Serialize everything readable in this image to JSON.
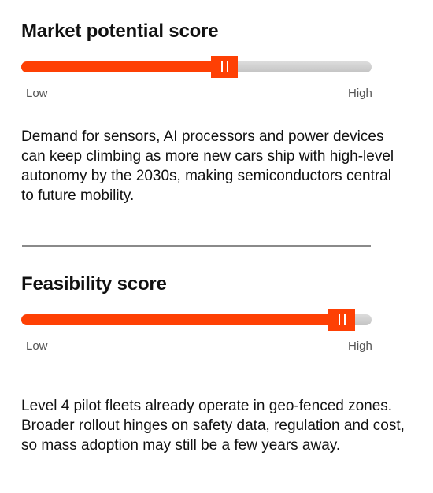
{
  "market": {
    "title": "Market potential score",
    "slider": {
      "value_fraction": 0.58,
      "low_label": "Low",
      "high_label": "High"
    },
    "description": "Demand for sensors, AI processors and power devices can keep climbing as more new cars ship with high-level autonomy by the 2030s, making semiconductors central to future mobility."
  },
  "feasibility": {
    "title": "Feasibility score",
    "slider": {
      "value_fraction": 0.915,
      "low_label": "Low",
      "high_label": "High"
    },
    "description": "Level 4 pilot fleets already operate in geo-fenced zones. Broader rollout hinges on safety data, regulation and cost, so mass adoption may still be a few years away."
  },
  "colors": {
    "accent": "#fe4004",
    "track": "#c9c9c9",
    "divider": "#8a8a8a",
    "text": "#111111"
  },
  "icons": {
    "slider_thumb": "pause-grip-icon"
  }
}
